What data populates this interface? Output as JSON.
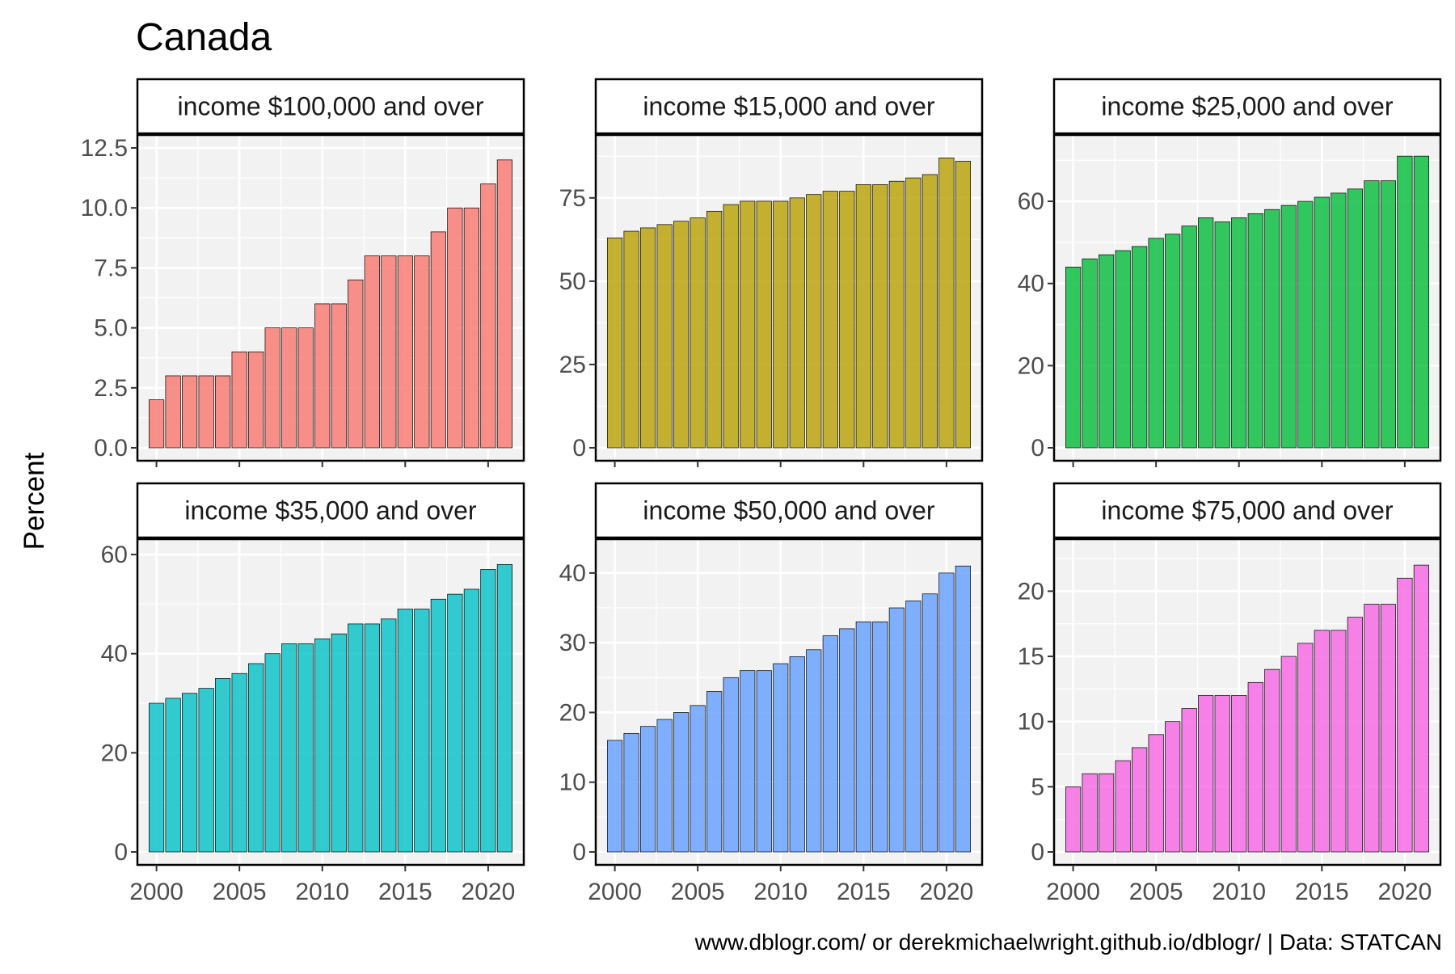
{
  "title": "Canada",
  "ylabel": "Percent",
  "caption": "www.dblogr.com/ or derekmichaelwright.github.io/dblogr/ | Data: STATCAN",
  "chart_data": {
    "type": "bar",
    "x": [
      2000,
      2001,
      2002,
      2003,
      2004,
      2005,
      2006,
      2007,
      2008,
      2009,
      2010,
      2011,
      2012,
      2013,
      2014,
      2015,
      2016,
      2017,
      2018,
      2019,
      2020,
      2021
    ],
    "x_ticks": [
      "2000",
      "2005",
      "2010",
      "2015",
      "2020"
    ],
    "grid": true,
    "panels": [
      {
        "name": "income $100,000 and over",
        "color": "#F8766D",
        "ylim": [
          0,
          12.5
        ],
        "y_ticks": [
          "0.0",
          "2.5",
          "5.0",
          "7.5",
          "10.0",
          "12.5"
        ],
        "values": [
          2,
          3,
          3,
          3,
          3,
          4,
          4,
          5,
          5,
          5,
          6,
          6,
          7,
          8,
          8,
          8,
          8,
          9,
          10,
          10,
          11,
          12
        ]
      },
      {
        "name": "income $15,000 and over",
        "color": "#B79F00",
        "ylim": [
          0,
          90
        ],
        "y_ticks": [
          "0",
          "25",
          "50",
          "75"
        ],
        "values": [
          63,
          65,
          66,
          67,
          68,
          69,
          71,
          73,
          74,
          74,
          74,
          75,
          76,
          77,
          77,
          79,
          79,
          80,
          81,
          82,
          87,
          86
        ]
      },
      {
        "name": "income $25,000 and over",
        "color": "#00BA38",
        "ylim": [
          0,
          73
        ],
        "y_ticks": [
          "0",
          "20",
          "40",
          "60"
        ],
        "values": [
          44,
          46,
          47,
          48,
          49,
          51,
          52,
          54,
          56,
          55,
          56,
          57,
          58,
          59,
          60,
          61,
          62,
          63,
          65,
          65,
          71,
          71
        ]
      },
      {
        "name": "income $35,000 and over",
        "color": "#00BFC4",
        "ylim": [
          0,
          60.5
        ],
        "y_ticks": [
          "0",
          "20",
          "40",
          "60"
        ],
        "values": [
          30,
          31,
          32,
          33,
          35,
          36,
          38,
          40,
          42,
          42,
          43,
          44,
          46,
          46,
          47,
          49,
          49,
          51,
          52,
          53,
          57,
          58
        ]
      },
      {
        "name": "income $50,000 and over",
        "color": "#619CFF",
        "ylim": [
          0,
          43
        ],
        "y_ticks": [
          "0",
          "10",
          "20",
          "30",
          "40"
        ],
        "values": [
          16,
          17,
          18,
          19,
          20,
          21,
          23,
          25,
          26,
          26,
          27,
          28,
          29,
          31,
          32,
          33,
          33,
          35,
          36,
          37,
          40,
          41
        ]
      },
      {
        "name": "income $75,000 and over",
        "color": "#F564E3",
        "ylim": [
          0,
          23
        ],
        "y_ticks": [
          "0",
          "5",
          "10",
          "15",
          "20"
        ],
        "values": [
          5,
          6,
          6,
          7,
          8,
          9,
          10,
          11,
          12,
          12,
          12,
          13,
          14,
          15,
          16,
          17,
          17,
          18,
          19,
          19,
          21,
          22
        ]
      }
    ]
  }
}
